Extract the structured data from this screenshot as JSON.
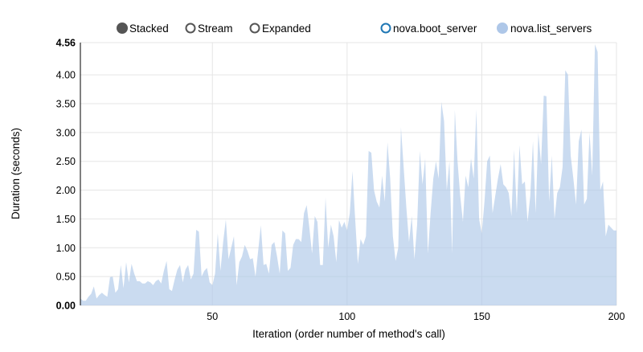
{
  "controls": [
    {
      "label": "Stacked",
      "selected": true
    },
    {
      "label": "Stream",
      "selected": false
    },
    {
      "label": "Expanded",
      "selected": false
    }
  ],
  "legend": [
    {
      "label": "nova.boot_server",
      "color": "#1f77b4",
      "enabled": false
    },
    {
      "label": "nova.list_servers",
      "color": "#aec7e8",
      "enabled": true
    }
  ],
  "chart_data": {
    "type": "area",
    "stacked": true,
    "xlabel": "Iteration (order number of method's call)",
    "ylabel": "Duration (seconds)",
    "xlim": [
      1,
      200
    ],
    "ylim": [
      0,
      4.56
    ],
    "x_ticks": [
      "50",
      "100",
      "150",
      "200"
    ],
    "y_ticks": [
      "0.00",
      "0.50",
      "1.00",
      "1.50",
      "2.00",
      "2.50",
      "3.00",
      "3.50",
      "4.00",
      "4.56"
    ],
    "grid": true,
    "legend_position": "top-right",
    "fill_color": "#aec7e8",
    "series": [
      {
        "name": "nova.list_servers",
        "values": [
          0.12,
          0.08,
          0.08,
          0.15,
          0.2,
          0.33,
          0.12,
          0.18,
          0.22,
          0.18,
          0.15,
          0.49,
          0.5,
          0.22,
          0.28,
          0.7,
          0.3,
          0.75,
          0.4,
          0.72,
          0.55,
          0.42,
          0.42,
          0.38,
          0.38,
          0.42,
          0.4,
          0.35,
          0.42,
          0.45,
          0.38,
          0.6,
          0.77,
          0.28,
          0.25,
          0.45,
          0.62,
          0.7,
          0.4,
          0.62,
          0.7,
          0.45,
          0.55,
          1.31,
          1.28,
          0.5,
          0.6,
          0.65,
          0.4,
          0.35,
          0.55,
          1.25,
          0.6,
          1.1,
          1.49,
          0.8,
          1.0,
          1.2,
          0.35,
          0.75,
          0.85,
          1.05,
          0.95,
          0.8,
          0.82,
          0.5,
          0.95,
          1.39,
          0.7,
          0.72,
          0.55,
          1.05,
          1.1,
          0.85,
          0.55,
          1.3,
          1.25,
          0.6,
          0.65,
          1.05,
          1.15,
          1.15,
          1.1,
          1.6,
          1.74,
          1.35,
          0.9,
          1.55,
          1.45,
          0.7,
          0.7,
          1.87,
          1.0,
          1.4,
          1.2,
          0.75,
          1.48,
          1.35,
          1.45,
          1.3,
          1.6,
          2.33,
          1.5,
          0.72,
          1.15,
          1.05,
          1.2,
          2.68,
          2.65,
          2.0,
          1.8,
          1.7,
          2.25,
          1.8,
          2.83,
          2.2,
          1.2,
          0.77,
          1.0,
          3.09,
          2.4,
          1.7,
          1.1,
          1.55,
          0.8,
          1.4,
          2.68,
          2.1,
          2.55,
          0.9,
          1.6,
          2.2,
          2.5,
          2.2,
          3.53,
          3.2,
          2.0,
          2.5,
          0.9,
          3.39,
          2.5,
          1.9,
          1.45,
          2.25,
          2.05,
          2.55,
          2.2,
          3.4,
          1.5,
          1.25,
          1.8,
          2.5,
          2.6,
          1.6,
          1.9,
          2.2,
          2.45,
          2.1,
          2.05,
          1.95,
          1.55,
          2.7,
          1.6,
          2.78,
          2.1,
          2.15,
          1.45,
          1.9,
          2.85,
          1.6,
          3.0,
          2.45,
          3.64,
          3.63,
          1.8,
          2.6,
          1.5,
          1.95,
          2.05,
          2.4,
          4.08,
          4.0,
          2.6,
          2.2,
          1.75,
          2.85,
          3.05,
          1.75,
          1.85,
          3.0,
          2.25,
          4.53,
          4.4,
          2.0,
          2.15,
          1.2,
          1.4,
          1.35,
          1.3,
          1.3
        ]
      }
    ]
  }
}
